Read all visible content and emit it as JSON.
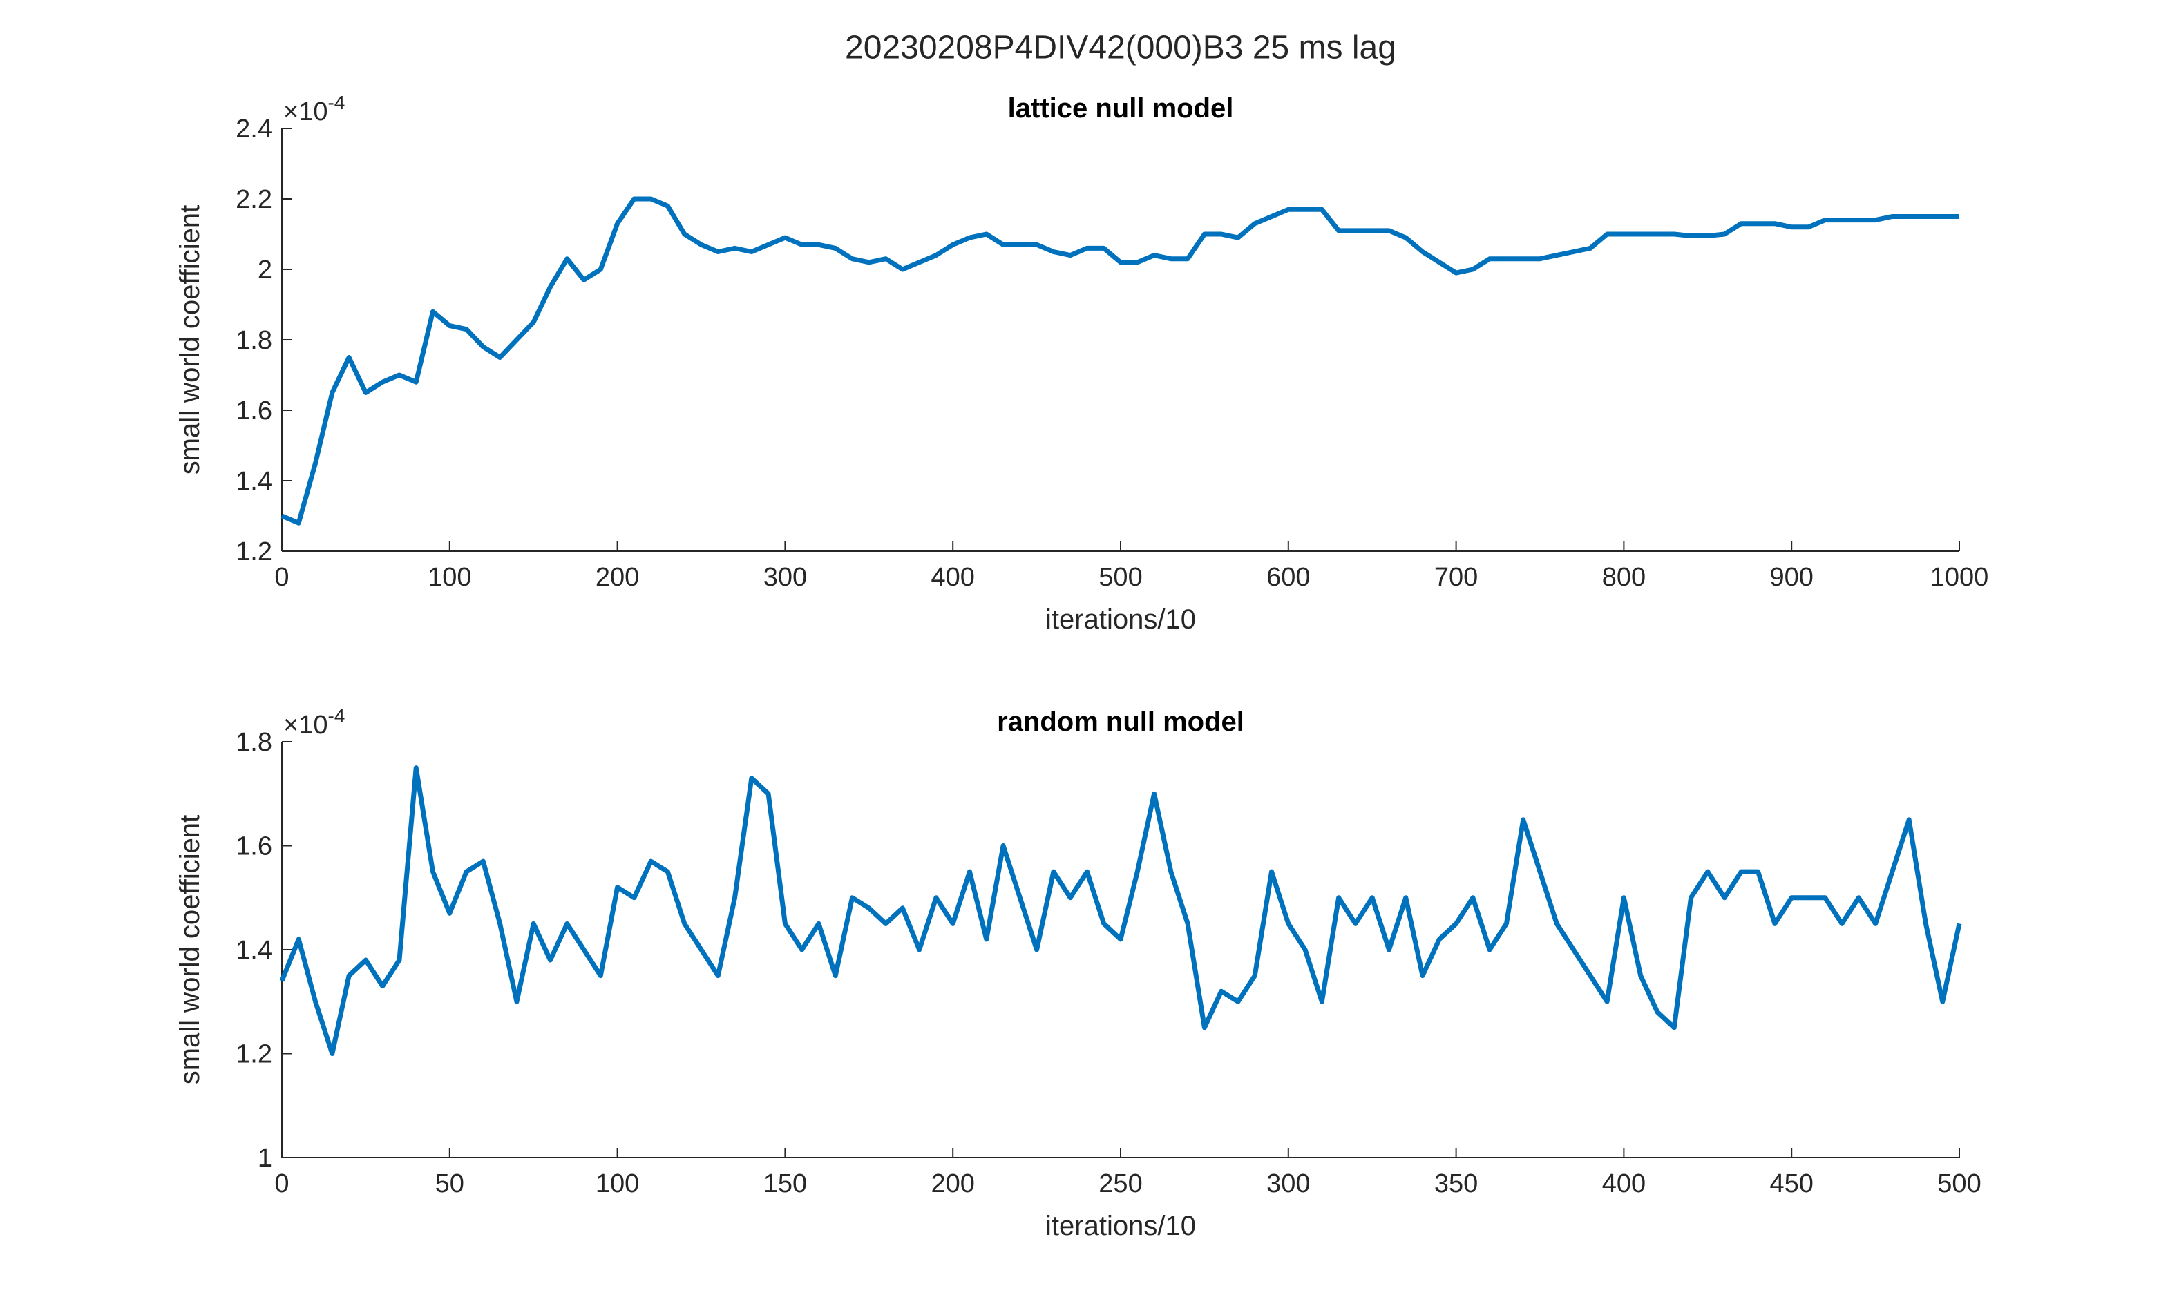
{
  "title": "20230208P4DIV42(000)B3 25 ms lag",
  "chart_data": [
    {
      "type": "line",
      "title": "lattice null model",
      "xlabel": "iterations/10",
      "ylabel": "small world coefficient",
      "y_exponent": {
        "base": "×10",
        "power": "-4"
      },
      "color": "#0072bd",
      "xlim": [
        0,
        1000
      ],
      "ylim": [
        1.2,
        2.4
      ],
      "xticks": [
        0,
        100,
        200,
        300,
        400,
        500,
        600,
        700,
        800,
        900,
        1000
      ],
      "yticks": [
        1.2,
        1.4,
        1.6,
        1.8,
        2,
        2.2,
        2.4
      ],
      "x": [
        0,
        10,
        20,
        30,
        40,
        50,
        60,
        70,
        80,
        90,
        100,
        110,
        120,
        130,
        140,
        150,
        160,
        170,
        180,
        190,
        200,
        210,
        220,
        230,
        240,
        250,
        260,
        270,
        280,
        290,
        300,
        310,
        320,
        330,
        340,
        350,
        360,
        370,
        380,
        390,
        400,
        410,
        420,
        430,
        440,
        450,
        460,
        470,
        480,
        490,
        500,
        510,
        520,
        530,
        540,
        550,
        560,
        570,
        580,
        590,
        600,
        610,
        620,
        630,
        640,
        650,
        660,
        670,
        680,
        690,
        700,
        710,
        720,
        730,
        740,
        750,
        760,
        770,
        780,
        790,
        800,
        810,
        820,
        830,
        840,
        850,
        860,
        870,
        880,
        890,
        900,
        910,
        920,
        930,
        940,
        950,
        960,
        970,
        980,
        990,
        1000
      ],
      "values": [
        1.3,
        1.28,
        1.45,
        1.65,
        1.75,
        1.65,
        1.68,
        1.7,
        1.68,
        1.88,
        1.84,
        1.83,
        1.78,
        1.75,
        1.8,
        1.85,
        1.95,
        2.03,
        1.97,
        2.0,
        2.13,
        2.2,
        2.2,
        2.18,
        2.1,
        2.07,
        2.05,
        2.06,
        2.05,
        2.07,
        2.09,
        2.07,
        2.07,
        2.06,
        2.03,
        2.02,
        2.03,
        2.0,
        2.02,
        2.04,
        2.07,
        2.09,
        2.1,
        2.07,
        2.07,
        2.07,
        2.05,
        2.04,
        2.06,
        2.06,
        2.02,
        2.02,
        2.04,
        2.03,
        2.03,
        2.1,
        2.1,
        2.09,
        2.13,
        2.15,
        2.17,
        2.17,
        2.17,
        2.11,
        2.11,
        2.11,
        2.11,
        2.09,
        2.05,
        2.02,
        1.99,
        2.0,
        2.03,
        2.03,
        2.03,
        2.03,
        2.04,
        2.05,
        2.06,
        2.1,
        2.1,
        2.1,
        2.1,
        2.1,
        2.095,
        2.095,
        2.1,
        2.13,
        2.13,
        2.13,
        2.12,
        2.12,
        2.14,
        2.14,
        2.14,
        2.14,
        2.15,
        2.15,
        2.15,
        2.15,
        2.15
      ]
    },
    {
      "type": "line",
      "title": "random null model",
      "xlabel": "iterations/10",
      "ylabel": "small world coefficient",
      "y_exponent": {
        "base": "×10",
        "power": "-4"
      },
      "color": "#0072bd",
      "xlim": [
        0,
        500
      ],
      "ylim": [
        1,
        1.8
      ],
      "xticks": [
        0,
        50,
        100,
        150,
        200,
        250,
        300,
        350,
        400,
        450,
        500
      ],
      "yticks": [
        1,
        1.2,
        1.4,
        1.6,
        1.8
      ],
      "x": [
        0,
        5,
        10,
        15,
        20,
        25,
        30,
        35,
        40,
        45,
        50,
        55,
        60,
        65,
        70,
        75,
        80,
        85,
        90,
        95,
        100,
        105,
        110,
        115,
        120,
        125,
        130,
        135,
        140,
        145,
        150,
        155,
        160,
        165,
        170,
        175,
        180,
        185,
        190,
        195,
        200,
        205,
        210,
        215,
        220,
        225,
        230,
        235,
        240,
        245,
        250,
        255,
        260,
        265,
        270,
        275,
        280,
        285,
        290,
        295,
        300,
        305,
        310,
        315,
        320,
        325,
        330,
        335,
        340,
        345,
        350,
        355,
        360,
        365,
        370,
        375,
        380,
        385,
        390,
        395,
        400,
        405,
        410,
        415,
        420,
        425,
        430,
        435,
        440,
        445,
        450,
        455,
        460,
        465,
        470,
        475,
        480,
        485,
        490,
        495,
        500
      ],
      "values": [
        1.34,
        1.42,
        1.3,
        1.2,
        1.35,
        1.38,
        1.33,
        1.38,
        1.75,
        1.55,
        1.47,
        1.55,
        1.57,
        1.45,
        1.3,
        1.45,
        1.38,
        1.45,
        1.4,
        1.35,
        1.52,
        1.5,
        1.57,
        1.55,
        1.45,
        1.4,
        1.35,
        1.5,
        1.73,
        1.7,
        1.45,
        1.4,
        1.45,
        1.35,
        1.5,
        1.48,
        1.45,
        1.48,
        1.4,
        1.5,
        1.45,
        1.55,
        1.42,
        1.6,
        1.5,
        1.4,
        1.55,
        1.5,
        1.55,
        1.45,
        1.42,
        1.55,
        1.7,
        1.55,
        1.45,
        1.25,
        1.32,
        1.3,
        1.35,
        1.55,
        1.45,
        1.4,
        1.3,
        1.5,
        1.45,
        1.5,
        1.4,
        1.5,
        1.35,
        1.42,
        1.45,
        1.5,
        1.4,
        1.45,
        1.65,
        1.55,
        1.45,
        1.4,
        1.35,
        1.3,
        1.5,
        1.35,
        1.28,
        1.25,
        1.5,
        1.55,
        1.5,
        1.55,
        1.55,
        1.45,
        1.5,
        1.5,
        1.5,
        1.45,
        1.5,
        1.45,
        1.55,
        1.65,
        1.45,
        1.3,
        1.45
      ]
    }
  ]
}
